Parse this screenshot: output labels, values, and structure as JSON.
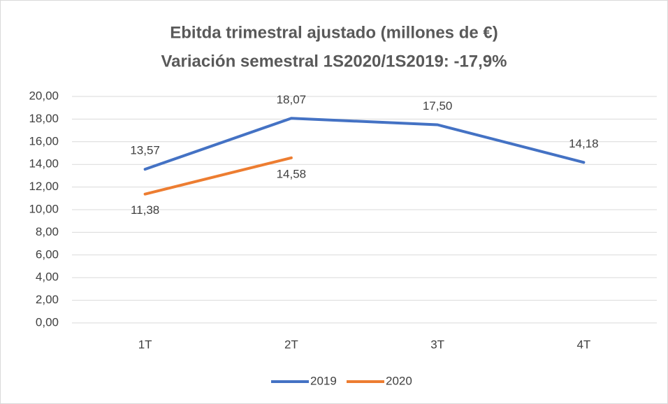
{
  "chart_data": {
    "type": "line",
    "title": [
      "Ebitda trimestral ajustado (millones de €)",
      "Variación semestral 1S2020/1S2019: -17,9%"
    ],
    "categories": [
      "1T",
      "2T",
      "3T",
      "4T"
    ],
    "series": [
      {
        "name": "2019",
        "color": "#4472c4",
        "label_position": "above",
        "values": [
          13.57,
          18.07,
          17.5,
          14.18
        ],
        "value_labels": [
          "13,57",
          "18,07",
          "17,50",
          "14,18"
        ]
      },
      {
        "name": "2020",
        "color": "#ed7d31",
        "label_position": "below",
        "values": [
          11.38,
          14.58,
          null,
          null
        ],
        "value_labels": [
          "11,38",
          "14,58",
          null,
          null
        ]
      }
    ],
    "ylim": [
      0,
      20
    ],
    "yticks": [
      {
        "value": 0,
        "label": "0,00"
      },
      {
        "value": 2,
        "label": "2,00"
      },
      {
        "value": 4,
        "label": "4,00"
      },
      {
        "value": 6,
        "label": "6,00"
      },
      {
        "value": 8,
        "label": "8,00"
      },
      {
        "value": 10,
        "label": "10,00"
      },
      {
        "value": 12,
        "label": "12,00"
      },
      {
        "value": 14,
        "label": "14,00"
      },
      {
        "value": 16,
        "label": "16,00"
      },
      {
        "value": 18,
        "label": "18,00"
      },
      {
        "value": 20,
        "label": "20,00"
      }
    ],
    "grid": true,
    "legend": "bottom"
  }
}
